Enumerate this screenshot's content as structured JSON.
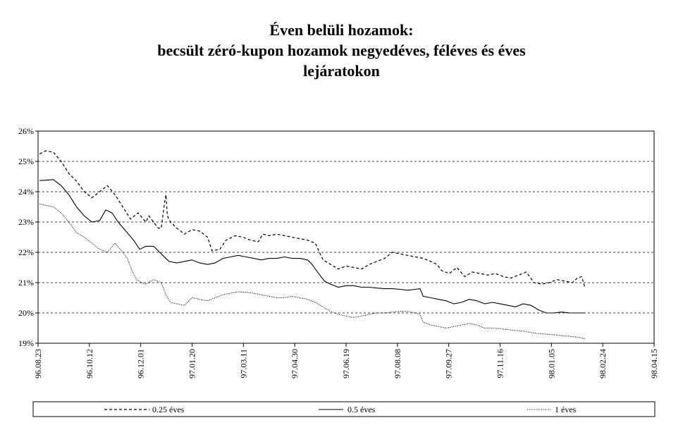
{
  "chart_data": {
    "type": "line",
    "title": [
      "Éven belüli hozamok:",
      "becsült zéró-kupon hozamok negyedéves, féléves és éves",
      "lejáratokon"
    ],
    "xlabel": "",
    "ylabel": "",
    "ylim": [
      0.19,
      0.26
    ],
    "yticks": [
      "26%",
      "25%",
      "24%",
      "23%",
      "22%",
      "21%",
      "20%",
      "19%"
    ],
    "xticks": [
      "96.08.23",
      "96.10.12",
      "96.12.01",
      "97.01.20",
      "97.03.11",
      "97.04.30",
      "97.06.19",
      "97.08.08",
      "97.09.27",
      "97.11.16",
      "98.01.05",
      "98.02.24",
      "98.04.15"
    ],
    "grid": "horizontal dashed",
    "legend_position": "bottom",
    "series": [
      {
        "name": "0.25 éves",
        "style": "dashed",
        "points": [
          [
            1,
            0.2525
          ],
          [
            5,
            0.2535
          ],
          [
            10,
            0.253
          ],
          [
            15,
            0.25
          ],
          [
            20,
            0.246
          ],
          [
            25,
            0.2435
          ],
          [
            30,
            0.24
          ],
          [
            35,
            0.238
          ],
          [
            40,
            0.24
          ],
          [
            45,
            0.242
          ],
          [
            50,
            0.239
          ],
          [
            55,
            0.235
          ],
          [
            60,
            0.231
          ],
          [
            65,
            0.233
          ],
          [
            70,
            0.23
          ],
          [
            72,
            0.232
          ],
          [
            75,
            0.23
          ],
          [
            78,
            0.228
          ],
          [
            80,
            0.228
          ],
          [
            82,
            0.236
          ],
          [
            83,
            0.239
          ],
          [
            84,
            0.232
          ],
          [
            86,
            0.23
          ],
          [
            90,
            0.228
          ],
          [
            95,
            0.226
          ],
          [
            100,
            0.2275
          ],
          [
            105,
            0.227
          ],
          [
            110,
            0.225
          ],
          [
            113,
            0.2205
          ],
          [
            118,
            0.221
          ],
          [
            122,
            0.224
          ],
          [
            128,
            0.2255
          ],
          [
            133,
            0.225
          ],
          [
            138,
            0.224
          ],
          [
            143,
            0.2235
          ],
          [
            146,
            0.226
          ],
          [
            150,
            0.2255
          ],
          [
            155,
            0.226
          ],
          [
            160,
            0.2255
          ],
          [
            165,
            0.225
          ],
          [
            170,
            0.2245
          ],
          [
            175,
            0.224
          ],
          [
            180,
            0.223
          ],
          [
            185,
            0.2175
          ],
          [
            190,
            0.216
          ],
          [
            195,
            0.2145
          ],
          [
            200,
            0.2155
          ],
          [
            205,
            0.215
          ],
          [
            210,
            0.2145
          ],
          [
            215,
            0.216
          ],
          [
            220,
            0.217
          ],
          [
            225,
            0.218
          ],
          [
            230,
            0.22
          ],
          [
            235,
            0.2195
          ],
          [
            240,
            0.219
          ],
          [
            245,
            0.2185
          ],
          [
            250,
            0.218
          ],
          [
            255,
            0.217
          ],
          [
            259,
            0.216
          ],
          [
            262,
            0.214
          ],
          [
            267,
            0.213
          ],
          [
            272,
            0.215
          ],
          [
            277,
            0.212
          ],
          [
            282,
            0.2135
          ],
          [
            287,
            0.213
          ],
          [
            292,
            0.2125
          ],
          [
            297,
            0.213
          ],
          [
            302,
            0.212
          ],
          [
            307,
            0.2115
          ],
          [
            312,
            0.2125
          ],
          [
            317,
            0.2135
          ],
          [
            322,
            0.21
          ],
          [
            327,
            0.2095
          ],
          [
            332,
            0.21
          ],
          [
            337,
            0.211
          ],
          [
            342,
            0.2105
          ],
          [
            347,
            0.21
          ],
          [
            350,
            0.2115
          ],
          [
            353,
            0.212
          ],
          [
            355,
            0.2085
          ]
        ]
      },
      {
        "name": "0.5 éves",
        "style": "solid",
        "points": [
          [
            1,
            0.2437
          ],
          [
            5,
            0.2438
          ],
          [
            10,
            0.244
          ],
          [
            15,
            0.242
          ],
          [
            20,
            0.239
          ],
          [
            25,
            0.235
          ],
          [
            30,
            0.232
          ],
          [
            35,
            0.23
          ],
          [
            40,
            0.2305
          ],
          [
            44,
            0.234
          ],
          [
            48,
            0.233
          ],
          [
            52,
            0.23
          ],
          [
            57,
            0.227
          ],
          [
            62,
            0.224
          ],
          [
            66,
            0.221
          ],
          [
            70,
            0.222
          ],
          [
            75,
            0.222
          ],
          [
            80,
            0.2195
          ],
          [
            85,
            0.217
          ],
          [
            90,
            0.2165
          ],
          [
            95,
            0.217
          ],
          [
            100,
            0.2175
          ],
          [
            105,
            0.2165
          ],
          [
            110,
            0.216
          ],
          [
            115,
            0.2165
          ],
          [
            120,
            0.218
          ],
          [
            125,
            0.2185
          ],
          [
            130,
            0.219
          ],
          [
            135,
            0.2185
          ],
          [
            140,
            0.218
          ],
          [
            145,
            0.2175
          ],
          [
            150,
            0.218
          ],
          [
            155,
            0.218
          ],
          [
            160,
            0.2185
          ],
          [
            165,
            0.218
          ],
          [
            170,
            0.218
          ],
          [
            175,
            0.2175
          ],
          [
            178,
            0.216
          ],
          [
            180,
            0.2145
          ],
          [
            183,
            0.2125
          ],
          [
            186,
            0.2105
          ],
          [
            190,
            0.2095
          ],
          [
            195,
            0.2085
          ],
          [
            200,
            0.209
          ],
          [
            205,
            0.209
          ],
          [
            210,
            0.2085
          ],
          [
            215,
            0.2085
          ],
          [
            220,
            0.2082
          ],
          [
            225,
            0.208
          ],
          [
            230,
            0.208
          ],
          [
            235,
            0.2078
          ],
          [
            240,
            0.2075
          ],
          [
            245,
            0.2078
          ],
          [
            248,
            0.208
          ],
          [
            250,
            0.2055
          ],
          [
            255,
            0.205
          ],
          [
            260,
            0.2045
          ],
          [
            265,
            0.204
          ],
          [
            270,
            0.203
          ],
          [
            275,
            0.2035
          ],
          [
            280,
            0.2045
          ],
          [
            285,
            0.204
          ],
          [
            290,
            0.203
          ],
          [
            295,
            0.2035
          ],
          [
            300,
            0.203
          ],
          [
            305,
            0.2025
          ],
          [
            310,
            0.202
          ],
          [
            315,
            0.203
          ],
          [
            320,
            0.2025
          ],
          [
            325,
            0.201
          ],
          [
            330,
            0.2
          ],
          [
            335,
            0.2
          ],
          [
            340,
            0.2003
          ],
          [
            345,
            0.2
          ],
          [
            350,
            0.2
          ],
          [
            355,
            0.2
          ]
        ]
      },
      {
        "name": "1 éves",
        "style": "dotted",
        "points": [
          [
            1,
            0.236
          ],
          [
            5,
            0.2355
          ],
          [
            10,
            0.235
          ],
          [
            15,
            0.233
          ],
          [
            20,
            0.23
          ],
          [
            25,
            0.2265
          ],
          [
            30,
            0.225
          ],
          [
            35,
            0.223
          ],
          [
            40,
            0.221
          ],
          [
            45,
            0.22
          ],
          [
            50,
            0.223
          ],
          [
            55,
            0.22
          ],
          [
            58,
            0.218
          ],
          [
            61,
            0.214
          ],
          [
            64,
            0.211
          ],
          [
            67,
            0.21
          ],
          [
            70,
            0.2095
          ],
          [
            75,
            0.211
          ],
          [
            80,
            0.21
          ],
          [
            83,
            0.206
          ],
          [
            86,
            0.2035
          ],
          [
            90,
            0.203
          ],
          [
            95,
            0.2025
          ],
          [
            100,
            0.205
          ],
          [
            105,
            0.2045
          ],
          [
            110,
            0.204
          ],
          [
            115,
            0.205
          ],
          [
            120,
            0.206
          ],
          [
            125,
            0.2065
          ],
          [
            130,
            0.207
          ],
          [
            135,
            0.2068
          ],
          [
            140,
            0.2065
          ],
          [
            145,
            0.206
          ],
          [
            150,
            0.2055
          ],
          [
            155,
            0.205
          ],
          [
            160,
            0.205
          ],
          [
            165,
            0.2055
          ],
          [
            170,
            0.205
          ],
          [
            175,
            0.2045
          ],
          [
            180,
            0.2035
          ],
          [
            185,
            0.202
          ],
          [
            190,
            0.2005
          ],
          [
            195,
            0.1995
          ],
          [
            200,
            0.199
          ],
          [
            205,
            0.1985
          ],
          [
            210,
            0.199
          ],
          [
            215,
            0.1995
          ],
          [
            220,
            0.2
          ],
          [
            225,
            0.2
          ],
          [
            230,
            0.2003
          ],
          [
            235,
            0.2005
          ],
          [
            240,
            0.2005
          ],
          [
            245,
            0.2
          ],
          [
            248,
            0.1995
          ],
          [
            250,
            0.197
          ],
          [
            255,
            0.196
          ],
          [
            260,
            0.1955
          ],
          [
            265,
            0.195
          ],
          [
            270,
            0.1955
          ],
          [
            275,
            0.196
          ],
          [
            280,
            0.1965
          ],
          [
            285,
            0.196
          ],
          [
            290,
            0.195
          ],
          [
            295,
            0.195
          ],
          [
            300,
            0.1948
          ],
          [
            305,
            0.1945
          ],
          [
            310,
            0.1942
          ],
          [
            315,
            0.194
          ],
          [
            320,
            0.1935
          ],
          [
            325,
            0.1932
          ],
          [
            330,
            0.193
          ],
          [
            335,
            0.1928
          ],
          [
            340,
            0.1925
          ],
          [
            345,
            0.1923
          ],
          [
            350,
            0.192
          ],
          [
            355,
            0.1915
          ]
        ]
      }
    ]
  }
}
